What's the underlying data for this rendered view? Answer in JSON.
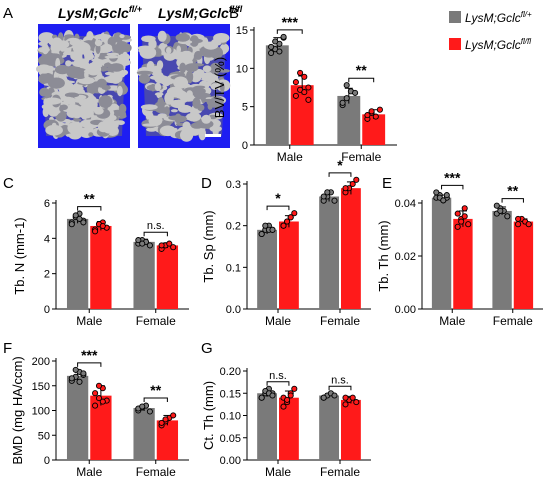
{
  "colors": {
    "gray": "#7a7a7a",
    "red": "#ff1a1a",
    "scan_bg": "#1e1ef2",
    "bone": "#c8c8c8"
  },
  "legend": {
    "label": "LysM;Gclc",
    "sup_a": "fl/+",
    "sup_b": "fl/fl"
  },
  "panel_a": {
    "letter": "A",
    "left_title": "LysM;Gclc",
    "left_sup": "fl/+",
    "right_title": "LysM;Gclc",
    "right_sup": "fl/fl"
  },
  "chart_data": [
    {
      "panel": "B",
      "type": "bar",
      "ylabel": "BV/TV (%)",
      "categories": [
        "Male",
        "Female"
      ],
      "ylim": [
        0,
        15
      ],
      "yticks": [
        "0",
        "5",
        "10",
        "15"
      ],
      "series": [
        {
          "name": "LysM;Gclc fl/+",
          "values": [
            13.0,
            6.4
          ],
          "errors": [
            1.0,
            1.0
          ],
          "points": [
            [
              12.0,
              12.5,
              13.2,
              14.0,
              12.8,
              13.5,
              12.2,
              14.1
            ],
            [
              5.2,
              6.1,
              7.0,
              6.8,
              5.5,
              7.8
            ]
          ]
        },
        {
          "name": "LysM;Gclc fl/fl",
          "values": [
            7.8,
            4.0
          ],
          "errors": [
            1.2,
            0.6
          ],
          "points": [
            [
              6.4,
              7.2,
              8.9,
              7.5,
              8.2,
              9.4,
              6.9,
              5.9
            ],
            [
              3.4,
              4.2,
              3.7,
              4.6,
              3.9,
              4.4
            ]
          ]
        }
      ],
      "annotations": [
        "***",
        "**"
      ]
    },
    {
      "panel": "C",
      "type": "bar",
      "ylabel": "Tb. N (mm-1)",
      "categories": [
        "Male",
        "Female"
      ],
      "ylim": [
        0,
        6
      ],
      "yticks": [
        "0",
        "2",
        "4",
        "6"
      ],
      "series": [
        {
          "name": "LysM;Gclc fl/+",
          "values": [
            5.1,
            3.8
          ],
          "errors": [
            0.25,
            0.15
          ],
          "points": [
            [
              4.9,
              5.2,
              5.4,
              5.0,
              4.8,
              5.3,
              5.1,
              4.9
            ],
            [
              3.7,
              3.9,
              3.8,
              3.6,
              3.9,
              3.7
            ]
          ]
        },
        {
          "name": "LysM;Gclc fl/fl",
          "values": [
            4.7,
            3.6
          ],
          "errors": [
            0.25,
            0.15
          ],
          "points": [
            [
              4.5,
              4.8,
              4.9,
              4.6,
              4.4,
              4.8,
              4.7
            ],
            [
              3.4,
              3.6,
              3.7,
              3.5,
              3.6
            ]
          ]
        }
      ],
      "annotations": [
        "**",
        "n.s."
      ]
    },
    {
      "panel": "D",
      "type": "bar",
      "ylabel": "Tb. Sp (mm)",
      "categories": [
        "Male",
        "Female"
      ],
      "ylim": [
        0,
        0.3
      ],
      "yticks": [
        "0.0",
        "0.1",
        "0.2",
        "0.3"
      ],
      "series": [
        {
          "name": "LysM;Gclc fl/+",
          "values": [
            0.19,
            0.27
          ],
          "errors": [
            0.01,
            0.012
          ],
          "points": [
            [
              0.18,
              0.19,
              0.2,
              0.19,
              0.18,
              0.2,
              0.19,
              0.19
            ],
            [
              0.26,
              0.27,
              0.28,
              0.26,
              0.27,
              0.28
            ]
          ]
        },
        {
          "name": "LysM;Gclc fl/fl",
          "values": [
            0.21,
            0.29
          ],
          "errors": [
            0.014,
            0.015
          ],
          "points": [
            [
              0.2,
              0.21,
              0.22,
              0.23,
              0.2,
              0.21,
              0.22
            ],
            [
              0.28,
              0.29,
              0.3,
              0.31,
              0.29
            ]
          ]
        }
      ],
      "annotations": [
        "*",
        "*"
      ]
    },
    {
      "panel": "E",
      "type": "bar",
      "ylabel": "Tb. Th (mm)",
      "categories": [
        "Male",
        "Female"
      ],
      "ylim": [
        0,
        0.04
      ],
      "yticks": [
        "0.00",
        "0.02",
        "0.04"
      ],
      "series": [
        {
          "name": "LysM;Gclc fl/+",
          "values": [
            0.042,
            0.037
          ],
          "errors": [
            0.001,
            0.0015
          ],
          "points": [
            [
              0.042,
              0.043,
              0.041,
              0.042,
              0.044,
              0.042,
              0.041,
              0.043
            ],
            [
              0.036,
              0.038,
              0.037,
              0.035,
              0.039,
              0.037
            ]
          ]
        },
        {
          "name": "LysM;Gclc fl/fl",
          "values": [
            0.034,
            0.033
          ],
          "errors": [
            0.003,
            0.001
          ],
          "points": [
            [
              0.031,
              0.034,
              0.038,
              0.032,
              0.036,
              0.033,
              0.035
            ],
            [
              0.032,
              0.034,
              0.033,
              0.032,
              0.034
            ]
          ]
        }
      ],
      "annotations": [
        "***",
        "**"
      ]
    },
    {
      "panel": "F",
      "type": "bar",
      "ylabel": "BMD (mg HA/ccm)",
      "categories": [
        "Male",
        "Female"
      ],
      "ylim": [
        0,
        200
      ],
      "yticks": [
        "0",
        "50",
        "100",
        "150",
        "200"
      ],
      "series": [
        {
          "name": "LysM;Gclc fl/+",
          "values": [
            170,
            105
          ],
          "errors": [
            10,
            6
          ],
          "points": [
            [
              160,
              168,
              178,
              172,
              165,
              182,
              158,
              175
            ],
            [
              100,
              106,
              110,
              98,
              104,
              108
            ]
          ]
        },
        {
          "name": "LysM;Gclc fl/fl",
          "values": [
            130,
            80
          ],
          "errors": [
            20,
            10
          ],
          "points": [
            [
              110,
              125,
              145,
              120,
              135,
              150,
              118
            ],
            [
              70,
              78,
              85,
              90,
              75,
              82
            ]
          ]
        }
      ],
      "annotations": [
        "***",
        "**"
      ]
    },
    {
      "panel": "G",
      "type": "bar",
      "ylabel": "Ct. Th (mm)",
      "categories": [
        "Male",
        "Female"
      ],
      "ylim": [
        0,
        0.2
      ],
      "yticks": [
        "0.00",
        "0.05",
        "0.10",
        "0.15",
        "0.20"
      ],
      "series": [
        {
          "name": "LysM;Gclc fl/+",
          "values": [
            0.15,
            0.145
          ],
          "errors": [
            0.008,
            0.004
          ],
          "points": [
            [
              0.14,
              0.15,
              0.16,
              0.15,
              0.14,
              0.155,
              0.15,
              0.145
            ],
            [
              0.14,
              0.145,
              0.15,
              0.145,
              0.14
            ]
          ]
        },
        {
          "name": "LysM;Gclc fl/fl",
          "values": [
            0.14,
            0.135
          ],
          "errors": [
            0.015,
            0.008
          ],
          "points": [
            [
              0.12,
              0.13,
              0.15,
              0.16,
              0.14,
              0.135,
              0.145
            ],
            [
              0.125,
              0.135,
              0.14,
              0.13,
              0.14
            ]
          ]
        }
      ],
      "annotations": [
        "n.s.",
        "n.s."
      ]
    }
  ]
}
